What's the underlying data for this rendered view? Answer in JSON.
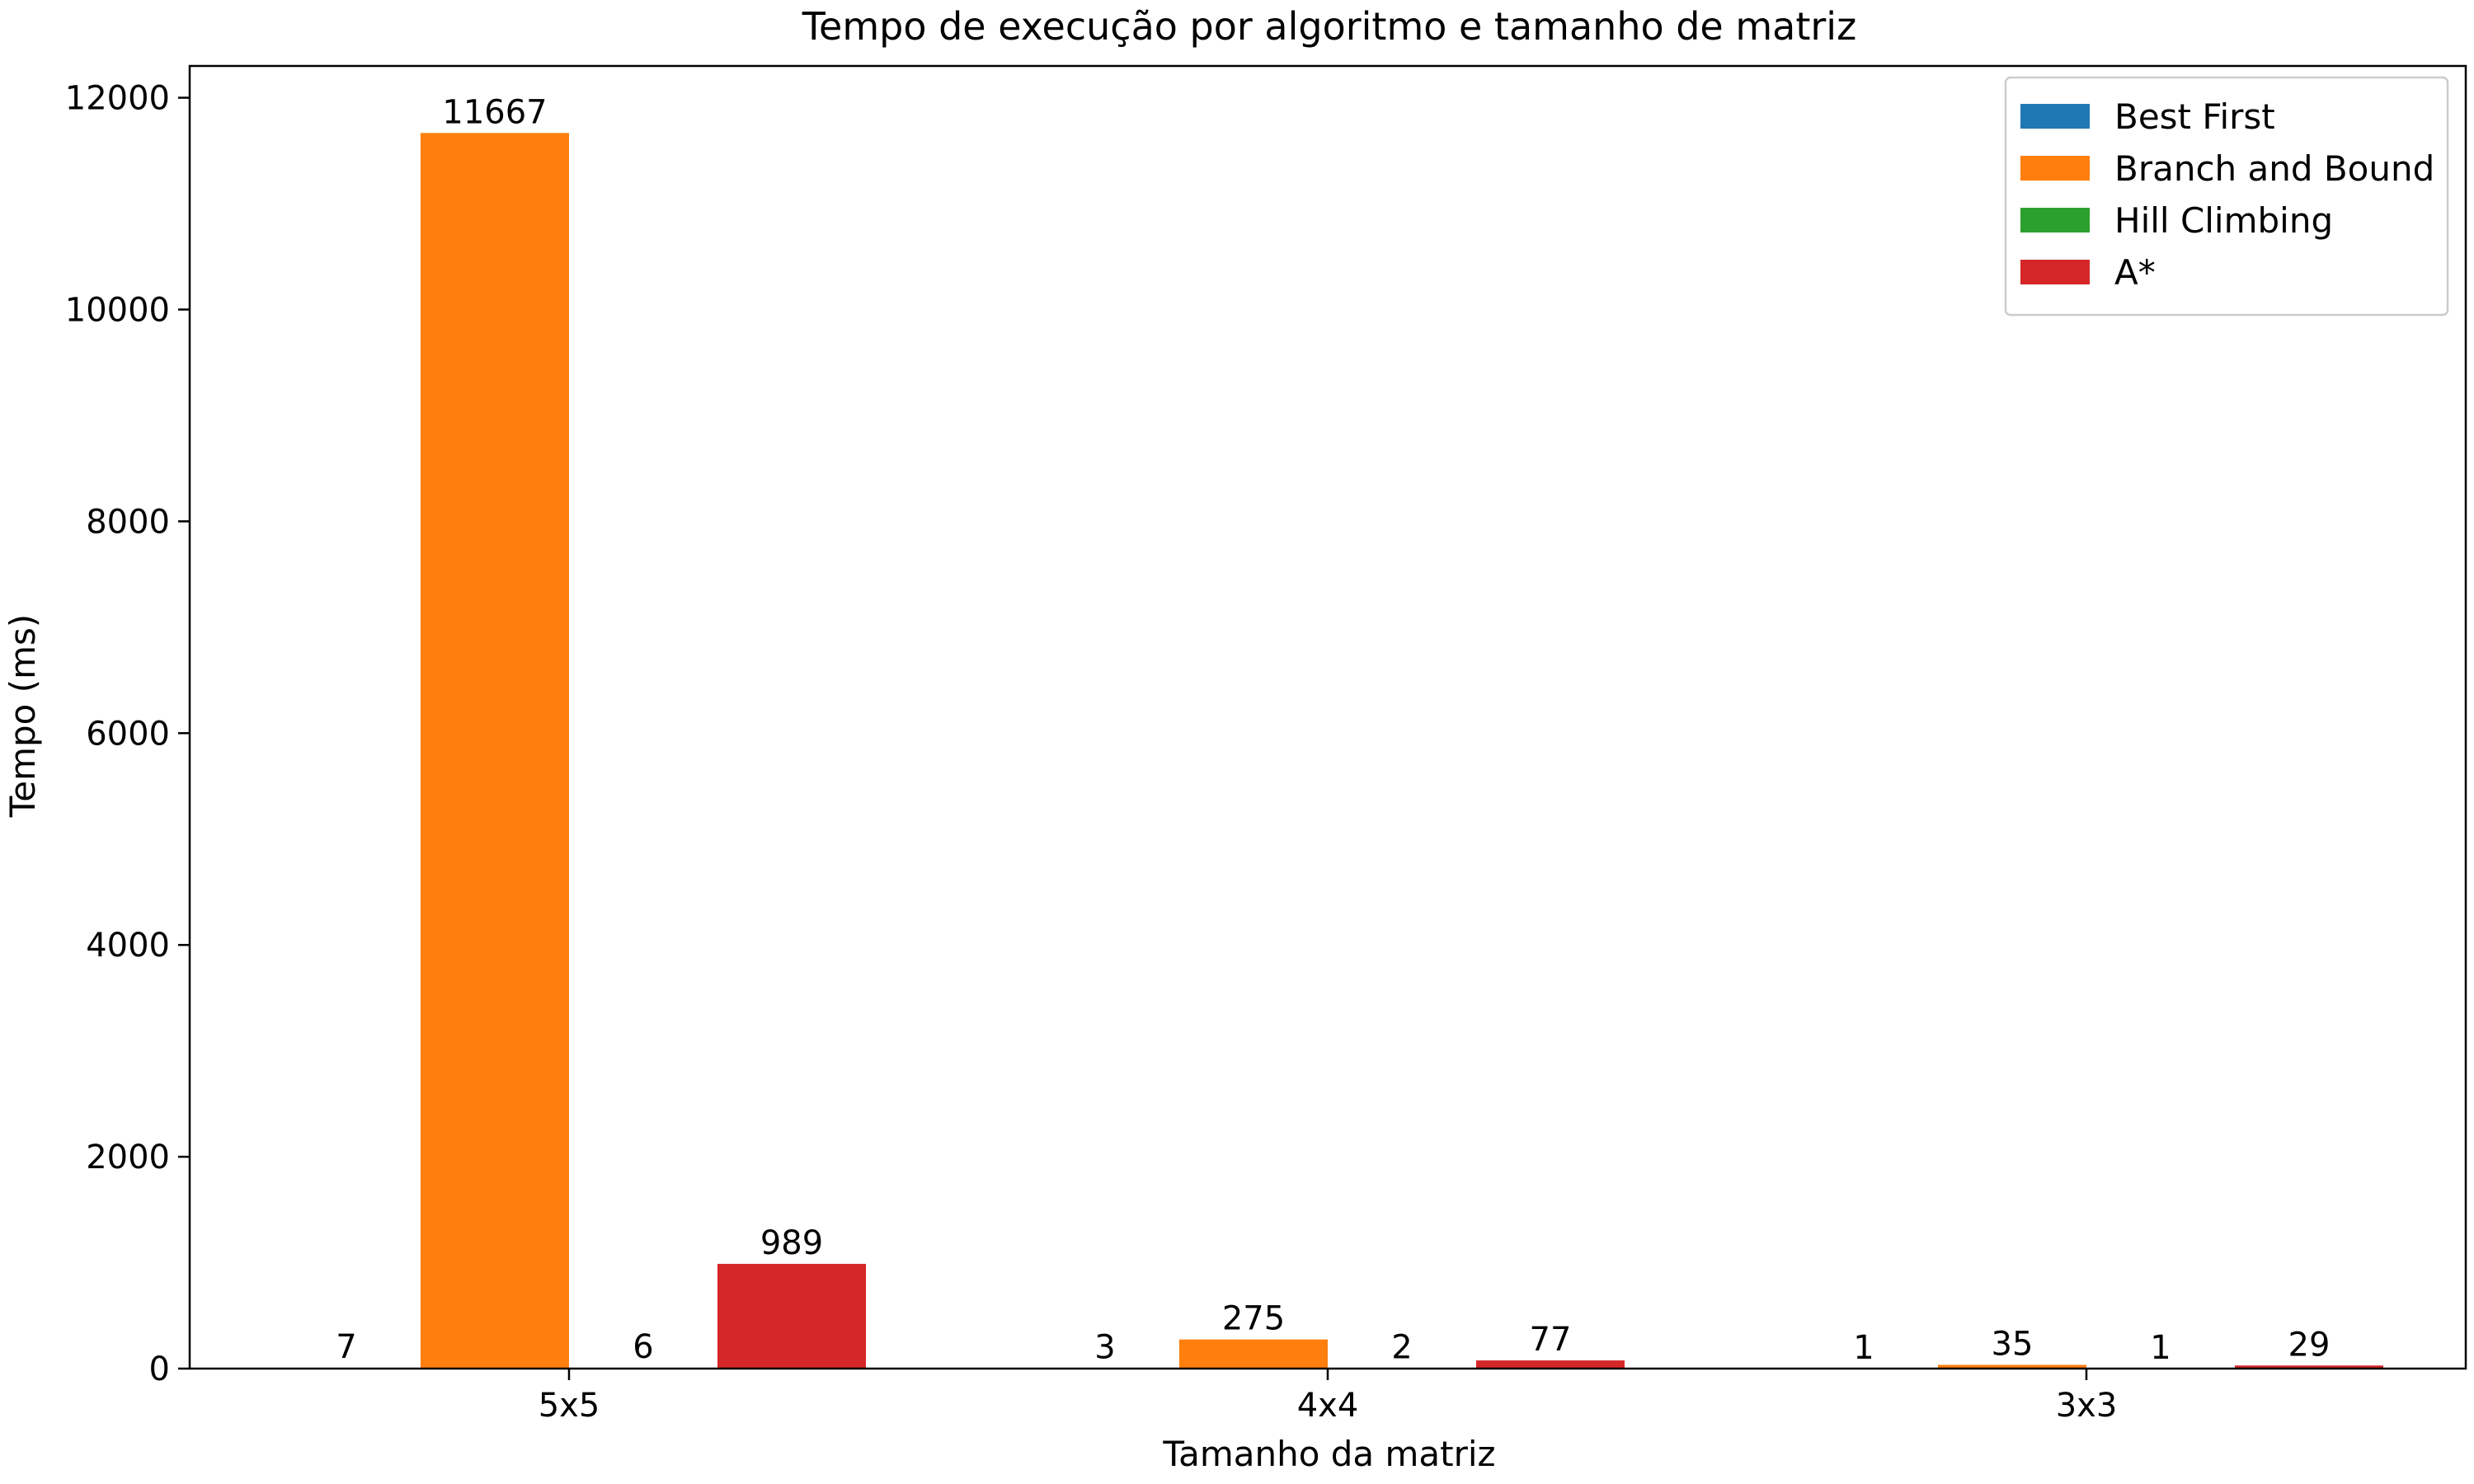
{
  "chart_data": {
    "type": "bar",
    "title": "Tempo de execução por algoritmo e tamanho de matriz",
    "xlabel": "Tamanho da matriz",
    "ylabel": "Tempo (ms)",
    "categories": [
      "5x5",
      "4x4",
      "3x3"
    ],
    "ylim": [
      0,
      12300
    ],
    "yticks": [
      0,
      2000,
      4000,
      6000,
      8000,
      10000,
      12000
    ],
    "grid": false,
    "legend_position": "top-right",
    "series": [
      {
        "name": "Best First",
        "color": "#1f77b4",
        "values": [
          7,
          3,
          1
        ]
      },
      {
        "name": "Branch and Bound",
        "color": "#ff7f0e",
        "values": [
          11667,
          275,
          35
        ]
      },
      {
        "name": "Hill Climbing",
        "color": "#2ca02c",
        "values": [
          6,
          2,
          1
        ]
      },
      {
        "name": "A*",
        "color": "#d62728",
        "values": [
          989,
          77,
          29
        ]
      }
    ]
  }
}
